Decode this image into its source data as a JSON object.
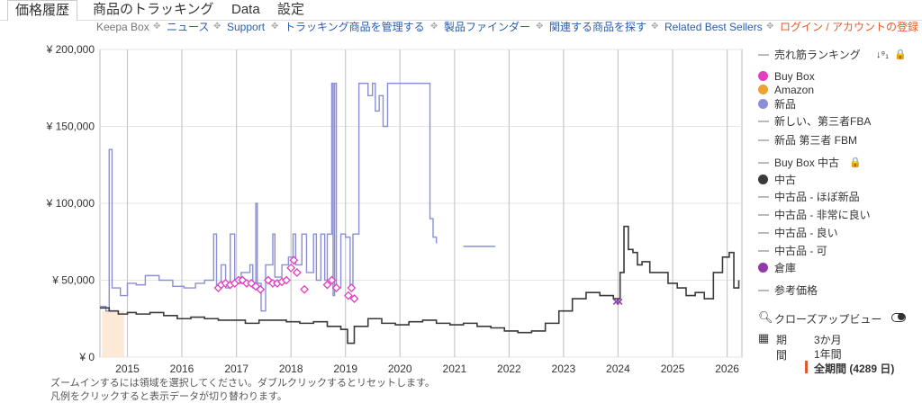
{
  "tabs": [
    {
      "label": "価格履歴",
      "active": true
    },
    {
      "label": "商品のトラッキング",
      "active": false
    },
    {
      "label": "Data",
      "active": false
    },
    {
      "label": "設定",
      "active": false
    }
  ],
  "subnav": {
    "keepa_box": "Keepa Box",
    "links": [
      "ニュース",
      "Support",
      "トラッキング商品を管理する",
      "製品ファインダー",
      "関連する商品を探す",
      "Related Best Sellers"
    ],
    "login": "ログイン / アカウントの登録"
  },
  "legend": {
    "sales_rank": "売れ筋ランキング",
    "buybox": "Buy Box",
    "amazon": "Amazon",
    "new": "新品",
    "new_fba": "新しい、第三者FBA",
    "new_fbm": "新品 第三者 FBM",
    "buybox_used": "Buy Box 中古",
    "used": "中古",
    "used_like_new": "中古品 - ほぼ新品",
    "used_very_good": "中古品 - 非常に良い",
    "used_good": "中古品 - 良い",
    "used_acceptable": "中古品 - 可",
    "warehouse": "倉庫",
    "reference_price": "参考価格"
  },
  "closeup_label": "クローズアップビュー",
  "period": {
    "label": "期間",
    "options": [
      "3か月",
      "1年間"
    ],
    "selected": "全期間 (4289 日)"
  },
  "notes": {
    "zoom": "ズームインするには領域を選択してください。ダブルクリックするとリセットします。",
    "legend": "凡例をクリックすると表示データが切り替わります。"
  },
  "colors": {
    "new": "#8a8fd6",
    "used": "#3a3a3a",
    "buybox": "#e040c0",
    "amazon": "#f0a030",
    "warehouse": "#8e3aa8",
    "accent": "#e05a2b",
    "link": "#2a5ea8"
  },
  "chart_data": {
    "type": "line",
    "x_type": "date",
    "y_ticks": [
      "¥ 0",
      "¥ 50,000",
      "¥ 100,000",
      "¥ 150,000",
      "¥ 200,000"
    ],
    "ylim": [
      0,
      200000
    ],
    "xlim": [
      "2014-07-01",
      "2026-04-10"
    ],
    "x_ticks": [
      "2015",
      "2016",
      "2017",
      "2018",
      "2019",
      "2020",
      "2021",
      "2022",
      "2023",
      "2024",
      "2025",
      "2026"
    ],
    "series": [
      {
        "name": "新品",
        "points": [
          [
            "2014-07-01",
            33000
          ],
          [
            "2014-08-10",
            30000
          ],
          [
            "2014-09-01",
            135000
          ],
          [
            "2014-09-20",
            45000
          ],
          [
            "2014-11-15",
            40000
          ],
          [
            "2014-12-01",
            40000
          ],
          [
            "2015-01-01",
            48000
          ],
          [
            "2015-03-01",
            47000
          ],
          [
            "2015-05-01",
            53000
          ],
          [
            "2015-08-01",
            50000
          ],
          [
            "2015-11-01",
            46000
          ],
          [
            "2016-01-15",
            45000
          ],
          [
            "2016-04-01",
            48000
          ],
          [
            "2016-06-01",
            50000
          ],
          [
            "2016-08-01",
            80000
          ],
          [
            "2016-08-20",
            45000
          ],
          [
            "2016-09-20",
            60000
          ],
          [
            "2016-10-20",
            45000
          ],
          [
            "2016-11-20",
            80000
          ],
          [
            "2016-12-20",
            48000
          ],
          [
            "2017-02-01",
            55000
          ],
          [
            "2017-04-01",
            60000
          ],
          [
            "2017-04-20",
            45000
          ],
          [
            "2017-05-10",
            100000
          ],
          [
            "2017-05-20",
            48000
          ],
          [
            "2017-06-15",
            30000
          ],
          [
            "2017-07-15",
            60000
          ],
          [
            "2017-09-01",
            80000
          ],
          [
            "2017-09-15",
            52000
          ],
          [
            "2017-11-01",
            60000
          ],
          [
            "2017-12-15",
            65000
          ],
          [
            "2018-01-15",
            80000
          ],
          [
            "2018-02-01",
            60000
          ],
          [
            "2018-03-15",
            80000
          ],
          [
            "2018-04-15",
            55000
          ],
          [
            "2018-06-01",
            80000
          ],
          [
            "2018-06-20",
            50000
          ],
          [
            "2018-07-20",
            80000
          ],
          [
            "2018-08-15",
            50000
          ],
          [
            "2018-09-01",
            80000
          ],
          [
            "2018-10-01",
            178000
          ],
          [
            "2018-10-10",
            40000
          ],
          [
            "2018-10-20",
            178000
          ],
          [
            "2018-11-01",
            45000
          ],
          [
            "2018-12-01",
            80000
          ],
          [
            "2019-01-01",
            78000
          ],
          [
            "2019-02-01",
            45000
          ],
          [
            "2019-02-20",
            80000
          ],
          [
            "2019-03-10",
            80000
          ],
          [
            "2019-04-01",
            178000
          ],
          [
            "2019-05-01",
            178000
          ],
          [
            "2019-06-01",
            170000
          ],
          [
            "2019-07-01",
            178000
          ],
          [
            "2019-07-20",
            160000
          ],
          [
            "2019-08-15",
            170000
          ],
          [
            "2019-09-10",
            150000
          ],
          [
            "2019-10-10",
            178000
          ],
          [
            "2020-02-01",
            178000
          ],
          [
            "2020-05-01",
            178000
          ],
          [
            "2020-07-01",
            178000
          ],
          [
            "2020-07-20",
            90000
          ],
          [
            "2020-08-10",
            78000
          ],
          [
            "2020-09-01",
            74000
          ]
        ]
      },
      {
        "name": "新品 (後期)",
        "points": [
          [
            "2021-03-01",
            72000
          ],
          [
            "2021-10-01",
            72000
          ]
        ]
      },
      {
        "name": "中古",
        "points": [
          [
            "2014-07-01",
            32000
          ],
          [
            "2014-09-01",
            30000
          ],
          [
            "2014-11-01",
            28000
          ],
          [
            "2015-01-01",
            29000
          ],
          [
            "2015-03-01",
            28000
          ],
          [
            "2015-06-01",
            29000
          ],
          [
            "2015-09-01",
            27000
          ],
          [
            "2015-12-01",
            25000
          ],
          [
            "2016-03-01",
            26000
          ],
          [
            "2016-06-01",
            25000
          ],
          [
            "2016-09-01",
            24000
          ],
          [
            "2016-12-01",
            24000
          ],
          [
            "2017-03-01",
            22000
          ],
          [
            "2017-06-01",
            24000
          ],
          [
            "2017-09-01",
            24000
          ],
          [
            "2017-12-01",
            23000
          ],
          [
            "2018-03-01",
            22000
          ],
          [
            "2018-06-01",
            23000
          ],
          [
            "2018-09-01",
            20000
          ],
          [
            "2018-12-01",
            18000
          ],
          [
            "2019-01-15",
            9000
          ],
          [
            "2019-03-01",
            20000
          ],
          [
            "2019-06-01",
            25000
          ],
          [
            "2019-09-01",
            22000
          ],
          [
            "2019-12-01",
            21000
          ],
          [
            "2020-03-01",
            23000
          ],
          [
            "2020-06-01",
            24000
          ],
          [
            "2020-09-01",
            22000
          ],
          [
            "2020-12-01",
            21000
          ],
          [
            "2021-03-01",
            22000
          ],
          [
            "2021-06-01",
            20000
          ],
          [
            "2021-09-01",
            19000
          ],
          [
            "2021-12-01",
            17000
          ],
          [
            "2022-03-01",
            16000
          ],
          [
            "2022-06-01",
            17000
          ],
          [
            "2022-09-01",
            22000
          ],
          [
            "2022-12-01",
            30000
          ],
          [
            "2023-03-01",
            38000
          ],
          [
            "2023-06-01",
            42000
          ],
          [
            "2023-09-01",
            40000
          ],
          [
            "2023-12-01",
            38000
          ],
          [
            "2024-01-15",
            55000
          ],
          [
            "2024-02-10",
            85000
          ],
          [
            "2024-03-10",
            70000
          ],
          [
            "2024-04-10",
            68000
          ],
          [
            "2024-05-10",
            60000
          ],
          [
            "2024-06-10",
            62000
          ],
          [
            "2024-08-01",
            55000
          ],
          [
            "2024-10-01",
            55000
          ],
          [
            "2024-12-01",
            48000
          ],
          [
            "2025-02-01",
            45000
          ],
          [
            "2025-04-01",
            40000
          ],
          [
            "2025-06-01",
            42000
          ],
          [
            "2025-08-01",
            38000
          ],
          [
            "2025-10-01",
            55000
          ],
          [
            "2025-12-01",
            65000
          ],
          [
            "2026-01-15",
            68000
          ],
          [
            "2026-02-15",
            45000
          ],
          [
            "2026-03-20",
            50000
          ]
        ]
      }
    ],
    "buybox_points": [
      [
        "2016-09-01",
        45000
      ],
      [
        "2016-09-20",
        47000
      ],
      [
        "2016-10-20",
        48000
      ],
      [
        "2016-11-20",
        47000
      ],
      [
        "2016-12-20",
        48000
      ],
      [
        "2017-01-15",
        50000
      ],
      [
        "2017-02-10",
        50000
      ],
      [
        "2017-03-10",
        48000
      ],
      [
        "2017-04-10",
        48000
      ],
      [
        "2017-05-10",
        46000
      ],
      [
        "2017-06-10",
        44000
      ],
      [
        "2017-08-01",
        50000
      ],
      [
        "2017-09-01",
        48000
      ],
      [
        "2017-10-01",
        48000
      ],
      [
        "2017-11-01",
        49000
      ],
      [
        "2017-12-01",
        50000
      ],
      [
        "2018-01-01",
        58000
      ],
      [
        "2018-01-20",
        63000
      ],
      [
        "2018-02-10",
        55000
      ],
      [
        "2018-04-01",
        44000
      ],
      [
        "2018-09-01",
        47000
      ],
      [
        "2018-10-01",
        50000
      ],
      [
        "2018-11-01",
        45000
      ],
      [
        "2019-01-20",
        40000
      ],
      [
        "2019-02-10",
        45000
      ],
      [
        "2019-03-01",
        38000
      ]
    ],
    "warehouse_points": [
      [
        "2023-12-20",
        36000
      ],
      [
        "2024-01-10",
        36000
      ]
    ]
  }
}
